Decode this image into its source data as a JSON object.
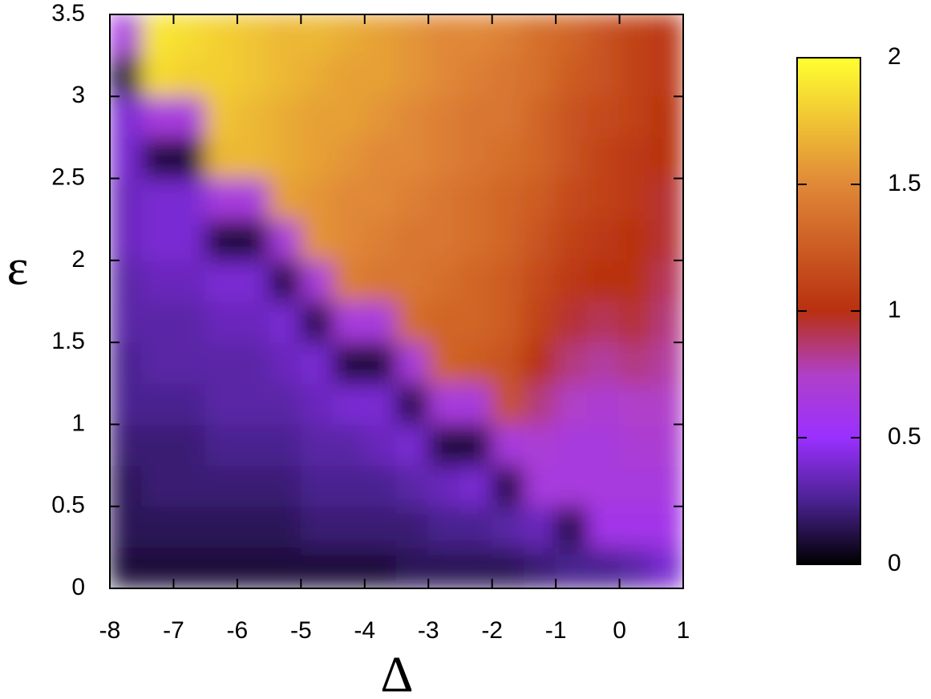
{
  "chart_data": {
    "type": "heatmap",
    "x": [
      -7.75,
      -7.25,
      -6.75,
      -6.25,
      -5.75,
      -5.25,
      -4.75,
      -4.25,
      -3.75,
      -3.25,
      -2.75,
      -2.25,
      -1.75,
      -1.25,
      -0.75,
      -0.25,
      0.25,
      0.75
    ],
    "y": [
      0.125,
      0.375,
      0.625,
      0.875,
      1.125,
      1.375,
      1.625,
      1.875,
      2.125,
      2.375,
      2.625,
      2.875,
      3.125,
      3.375
    ],
    "values": [
      [
        0.1,
        0.15,
        0.15,
        0.2,
        0.25,
        0.25,
        0.3,
        0.3,
        0.35,
        0.35,
        0.4,
        0.4,
        0.1,
        0.65
      ],
      [
        0.1,
        0.15,
        0.2,
        0.2,
        0.25,
        0.3,
        0.3,
        0.35,
        0.4,
        0.4,
        0.1,
        0.65,
        1.85,
        1.9
      ],
      [
        0.1,
        0.15,
        0.2,
        0.2,
        0.25,
        0.3,
        0.3,
        0.35,
        0.4,
        0.4,
        0.1,
        0.65,
        1.8,
        1.85
      ],
      [
        0.1,
        0.15,
        0.2,
        0.25,
        0.3,
        0.3,
        0.35,
        0.4,
        0.1,
        0.65,
        1.7,
        1.75,
        1.8,
        1.8
      ],
      [
        0.1,
        0.15,
        0.2,
        0.25,
        0.3,
        0.3,
        0.35,
        0.4,
        0.1,
        0.65,
        1.7,
        1.7,
        1.75,
        1.75
      ],
      [
        0.1,
        0.15,
        0.2,
        0.25,
        0.3,
        0.35,
        0.4,
        0.1,
        0.65,
        1.6,
        1.65,
        1.65,
        1.7,
        1.7
      ],
      [
        0.1,
        0.2,
        0.25,
        0.3,
        0.35,
        0.4,
        0.1,
        0.65,
        1.55,
        1.55,
        1.6,
        1.6,
        1.65,
        1.7
      ],
      [
        0.1,
        0.2,
        0.25,
        0.3,
        0.4,
        0.1,
        0.65,
        1.45,
        1.5,
        1.5,
        1.55,
        1.6,
        1.6,
        1.65
      ],
      [
        0.1,
        0.2,
        0.25,
        0.35,
        0.4,
        0.1,
        0.65,
        1.4,
        1.45,
        1.5,
        1.5,
        1.55,
        1.6,
        1.6
      ],
      [
        0.15,
        0.2,
        0.3,
        0.4,
        0.1,
        0.65,
        1.35,
        1.4,
        1.4,
        1.45,
        1.5,
        1.5,
        1.55,
        1.55
      ],
      [
        0.15,
        0.25,
        0.35,
        0.1,
        0.65,
        1.3,
        1.3,
        1.35,
        1.4,
        1.4,
        1.45,
        1.45,
        1.5,
        1.5
      ],
      [
        0.15,
        0.25,
        0.4,
        0.1,
        0.65,
        1.25,
        1.3,
        1.3,
        1.35,
        1.35,
        1.4,
        1.4,
        1.45,
        1.5
      ],
      [
        0.15,
        0.3,
        0.1,
        0.65,
        1.2,
        1.2,
        1.25,
        1.25,
        1.3,
        1.3,
        1.35,
        1.4,
        1.4,
        1.45
      ],
      [
        0.2,
        0.35,
        0.65,
        0.7,
        0.85,
        1.0,
        1.1,
        1.15,
        1.2,
        1.25,
        1.3,
        1.3,
        1.35,
        1.35
      ],
      [
        0.25,
        0.1,
        0.65,
        0.65,
        0.75,
        0.85,
        0.95,
        1.05,
        1.1,
        1.15,
        1.2,
        1.2,
        1.25,
        1.3
      ],
      [
        0.25,
        0.6,
        0.65,
        0.65,
        0.7,
        0.8,
        0.9,
        1.0,
        1.05,
        1.1,
        1.1,
        1.15,
        1.2,
        1.2
      ],
      [
        0.3,
        0.6,
        0.65,
        0.7,
        0.75,
        0.85,
        0.95,
        1.0,
        1.0,
        1.05,
        1.05,
        1.1,
        1.1,
        1.1
      ],
      [
        0.4,
        0.6,
        0.65,
        0.7,
        0.75,
        0.8,
        0.85,
        0.9,
        0.95,
        0.95,
        1.0,
        1.0,
        1.05,
        1.05
      ]
    ],
    "xlabel": "Δ",
    "ylabel": "ε",
    "xlim": [
      -8,
      1
    ],
    "ylim": [
      0,
      3.5
    ],
    "xticks": [
      -8,
      -7,
      -6,
      -5,
      -4,
      -3,
      -2,
      -1,
      0,
      1
    ],
    "yticks": [
      0,
      0.5,
      1,
      1.5,
      2,
      2.5,
      3,
      3.5
    ],
    "colorbar": {
      "lim": [
        0,
        2
      ],
      "ticks": [
        0,
        0.5,
        1,
        1.5,
        2
      ]
    },
    "colorscale": [
      [
        0,
        "#000000"
      ],
      [
        0.25,
        "#4a2290"
      ],
      [
        0.5,
        "#9a30ff"
      ],
      [
        0.75,
        "#b040c8"
      ],
      [
        1,
        "#b83010"
      ],
      [
        1.5,
        "#e08838"
      ],
      [
        2,
        "#ffff30"
      ]
    ]
  }
}
